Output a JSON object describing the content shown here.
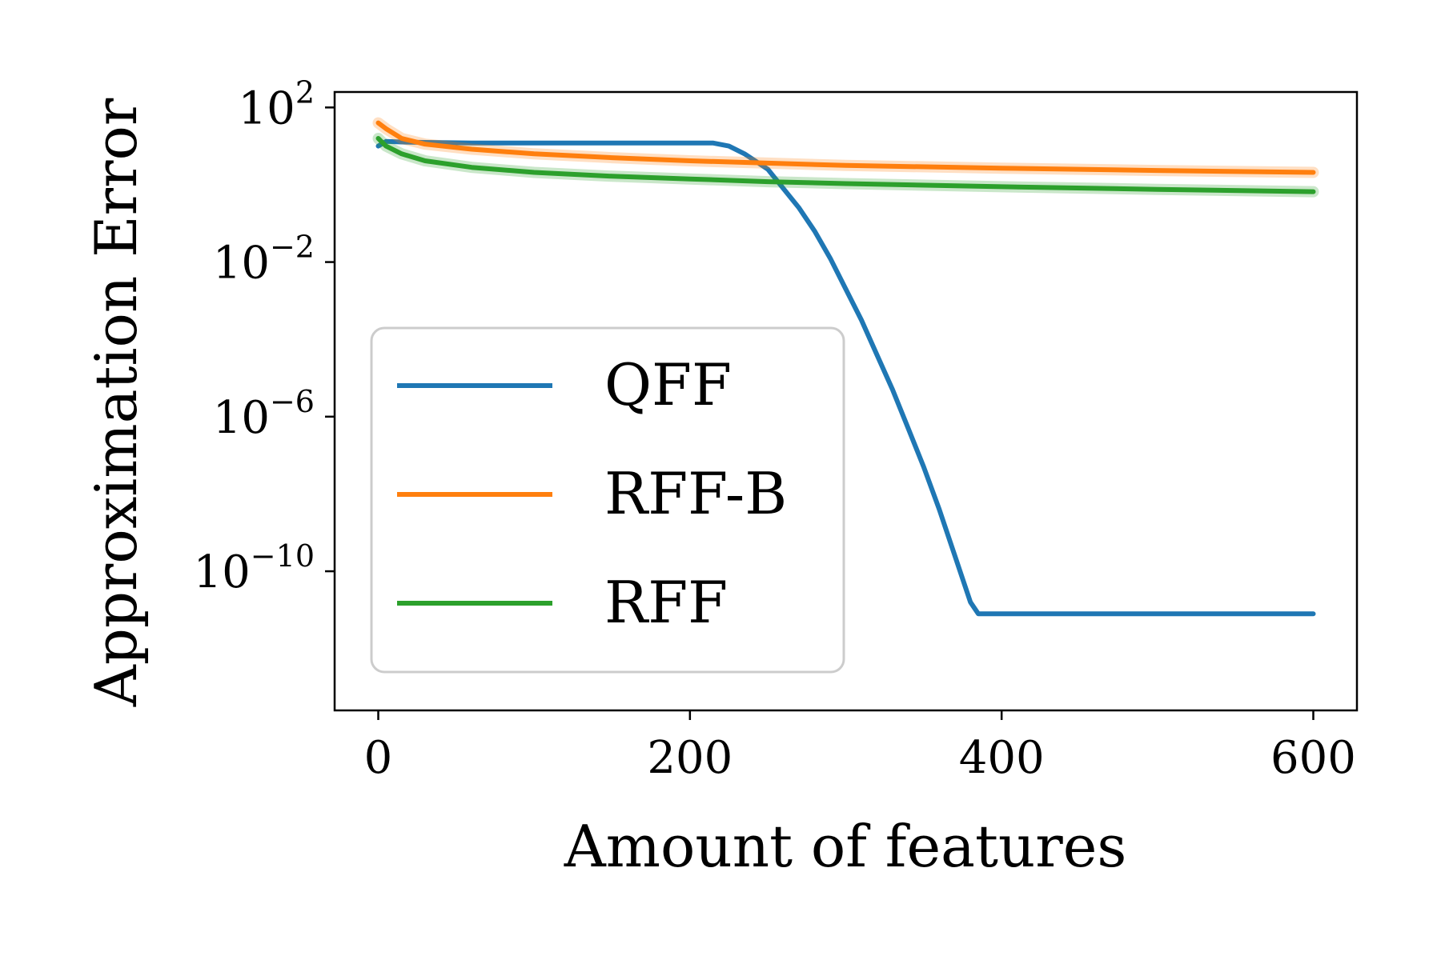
{
  "chart_data": {
    "type": "line",
    "title": "",
    "xlabel": "Amount of features",
    "ylabel": "Approximation Error",
    "xlim": [
      -28,
      628
    ],
    "ylim_log10": [
      -13.6,
      2.4
    ],
    "y_scale": "log",
    "x_ticks": [
      {
        "value": 0,
        "label": "0"
      },
      {
        "value": 200,
        "label": "200"
      },
      {
        "value": 400,
        "label": "400"
      },
      {
        "value": 600,
        "label": "600"
      }
    ],
    "y_ticks": [
      {
        "log10": 2,
        "base": "10",
        "exp": "2"
      },
      {
        "log10": -2,
        "base": "10",
        "exp": "−2"
      },
      {
        "log10": -6,
        "base": "10",
        "exp": "−6"
      },
      {
        "log10": -10,
        "base": "10",
        "exp": "−10"
      }
    ],
    "grid": false,
    "legend": {
      "position": "center-left"
    },
    "series": [
      {
        "name": "QFF",
        "color": "#1f77b4",
        "points_log10": [
          [
            0,
            1.0
          ],
          [
            5,
            1.12
          ],
          [
            20,
            1.1
          ],
          [
            60,
            1.08
          ],
          [
            150,
            1.08
          ],
          [
            215,
            1.08
          ],
          [
            225,
            1.0
          ],
          [
            235,
            0.8
          ],
          [
            250,
            0.4
          ],
          [
            260,
            -0.1
          ],
          [
            270,
            -0.6
          ],
          [
            280,
            -1.2
          ],
          [
            290,
            -1.9
          ],
          [
            300,
            -2.7
          ],
          [
            310,
            -3.5
          ],
          [
            320,
            -4.4
          ],
          [
            330,
            -5.3
          ],
          [
            340,
            -6.3
          ],
          [
            350,
            -7.3
          ],
          [
            360,
            -8.4
          ],
          [
            370,
            -9.6
          ],
          [
            380,
            -10.8
          ],
          [
            385,
            -11.1
          ],
          [
            400,
            -11.1
          ],
          [
            500,
            -11.1
          ],
          [
            600,
            -11.1
          ]
        ]
      },
      {
        "name": "RFF-B",
        "color": "#ff7f0e",
        "points_log10": [
          [
            0,
            1.6
          ],
          [
            5,
            1.45
          ],
          [
            15,
            1.2
          ],
          [
            30,
            1.05
          ],
          [
            60,
            0.92
          ],
          [
            100,
            0.8
          ],
          [
            150,
            0.7
          ],
          [
            200,
            0.62
          ],
          [
            250,
            0.56
          ],
          [
            300,
            0.5
          ],
          [
            400,
            0.43
          ],
          [
            500,
            0.37
          ],
          [
            600,
            0.32
          ]
        ]
      },
      {
        "name": "RFF",
        "color": "#2ca02c",
        "points_log10": [
          [
            0,
            1.2
          ],
          [
            5,
            1.0
          ],
          [
            15,
            0.8
          ],
          [
            30,
            0.62
          ],
          [
            60,
            0.45
          ],
          [
            100,
            0.32
          ],
          [
            150,
            0.22
          ],
          [
            200,
            0.15
          ],
          [
            250,
            0.08
          ],
          [
            300,
            0.03
          ],
          [
            400,
            -0.05
          ],
          [
            500,
            -0.12
          ],
          [
            600,
            -0.18
          ]
        ]
      }
    ]
  }
}
